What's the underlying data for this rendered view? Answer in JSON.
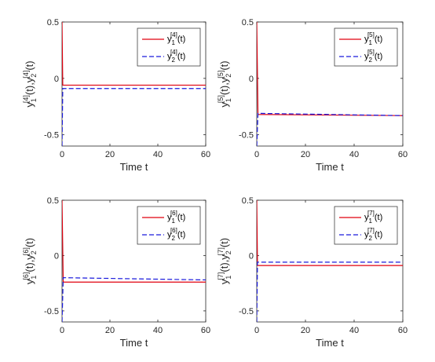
{
  "colors": {
    "series1": "#e0000f",
    "series2": "#1a1adc",
    "axis": "#262626"
  },
  "chart_data": [
    {
      "type": "line",
      "superscript": "4",
      "xlabel": "Time t",
      "ylabel_parts": [
        "y",
        "1",
        "[4]",
        "(t),y",
        "2",
        "[4]",
        "(t)"
      ],
      "xlim": [
        0,
        60
      ],
      "ylim": [
        -0.6,
        0.5
      ],
      "xticks": [
        0,
        20,
        40,
        60
      ],
      "yticks": [
        -0.5,
        0,
        0.5
      ],
      "ytick_labels": [
        "-0.5",
        "0",
        "0.5"
      ],
      "legend_position": "top-right",
      "series": [
        {
          "legend_parts": [
            "y",
            "1",
            "[4]",
            "(t)"
          ],
          "style": "solid",
          "color": "#e0000f",
          "x": [
            0,
            0.3,
            60
          ],
          "y": [
            0.5,
            -0.06,
            -0.06
          ]
        },
        {
          "legend_parts": [
            "y",
            "2",
            "[4]",
            "(t)"
          ],
          "style": "dashed",
          "color": "#1a1adc",
          "x": [
            0,
            0.3,
            60
          ],
          "y": [
            -0.6,
            -0.09,
            -0.09
          ]
        }
      ]
    },
    {
      "type": "line",
      "superscript": "5",
      "xlabel": "Time t",
      "ylabel_parts": [
        "y",
        "1",
        "[5]",
        "(t),y",
        "2",
        "[5]",
        "(t)"
      ],
      "xlim": [
        0,
        60
      ],
      "ylim": [
        -0.6,
        0.5
      ],
      "xticks": [
        0,
        20,
        40,
        60
      ],
      "yticks": [
        -0.5,
        0,
        0.5
      ],
      "ytick_labels": [
        "-0.5",
        "0",
        "0.5"
      ],
      "legend_position": "top-right",
      "series": [
        {
          "legend_parts": [
            "y",
            "1",
            "[5]",
            "(t)"
          ],
          "style": "solid",
          "color": "#e0000f",
          "x": [
            0,
            0.5,
            60
          ],
          "y": [
            0.5,
            -0.32,
            -0.33
          ]
        },
        {
          "legend_parts": [
            "y",
            "2",
            "[5]",
            "(t)"
          ],
          "style": "dashed",
          "color": "#1a1adc",
          "x": [
            0,
            0.5,
            60
          ],
          "y": [
            -0.6,
            -0.31,
            -0.33
          ]
        }
      ]
    },
    {
      "type": "line",
      "superscript": "6",
      "xlabel": "Time t",
      "ylabel_parts": [
        "y",
        "1",
        "[6]",
        "(t),y",
        "2",
        "[6]",
        "(t)"
      ],
      "xlim": [
        0,
        60
      ],
      "ylim": [
        -0.6,
        0.5
      ],
      "xticks": [
        0,
        20,
        40,
        60
      ],
      "yticks": [
        -0.5,
        0,
        0.5
      ],
      "ytick_labels": [
        "-0.5",
        "0",
        "0.5"
      ],
      "legend_position": "top-right",
      "series": [
        {
          "legend_parts": [
            "y",
            "1",
            "[6]",
            "(t)"
          ],
          "style": "solid",
          "color": "#e0000f",
          "x": [
            0,
            0.5,
            60
          ],
          "y": [
            0.5,
            -0.24,
            -0.24
          ]
        },
        {
          "legend_parts": [
            "y",
            "2",
            "[6]",
            "(t)"
          ],
          "style": "dashed",
          "color": "#1a1adc",
          "x": [
            0,
            0.5,
            60
          ],
          "y": [
            -0.6,
            -0.2,
            -0.22
          ]
        }
      ]
    },
    {
      "type": "line",
      "superscript": "7",
      "xlabel": "Time t",
      "ylabel_parts": [
        "y",
        "1",
        "[7]",
        "(t),y",
        "2",
        "[7]",
        "(t)"
      ],
      "xlim": [
        0,
        60
      ],
      "ylim": [
        -0.6,
        0.5
      ],
      "xticks": [
        0,
        20,
        40,
        60
      ],
      "yticks": [
        -0.5,
        0,
        0.5
      ],
      "ytick_labels": [
        "-0.5",
        "0",
        "0.5"
      ],
      "legend_position": "top-right",
      "series": [
        {
          "legend_parts": [
            "y",
            "1",
            "[7]",
            "(t)"
          ],
          "style": "solid",
          "color": "#e0000f",
          "x": [
            0,
            0.3,
            60
          ],
          "y": [
            0.5,
            -0.09,
            -0.09
          ]
        },
        {
          "legend_parts": [
            "y",
            "2",
            "[7]",
            "(t)"
          ],
          "style": "dashed",
          "color": "#1a1adc",
          "x": [
            0,
            0.3,
            60
          ],
          "y": [
            -0.6,
            -0.06,
            -0.06
          ]
        }
      ]
    }
  ]
}
